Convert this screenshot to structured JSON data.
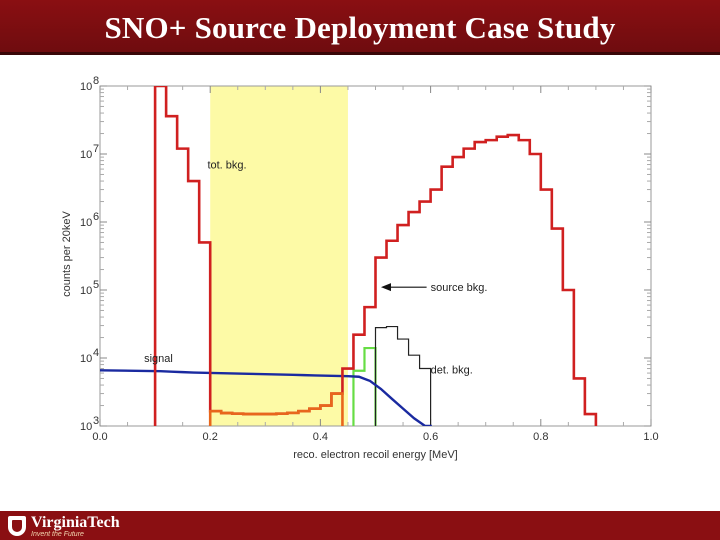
{
  "slide": {
    "title": "SNO+ Source Deployment Case Study",
    "logo": {
      "name": "VirginiaTech",
      "tagline": "Invent the Future"
    }
  },
  "chart_data": {
    "type": "line",
    "xlabel": "reco. electron recoil energy [MeV]",
    "ylabel": "counts per 20keV",
    "xlim": [
      0.0,
      1.0
    ],
    "ylim": [
      1000,
      100000000
    ],
    "yscale": "log",
    "grid": false,
    "xticks": [
      "0.0",
      "0.2",
      "0.4",
      "0.6",
      "0.8",
      "1.0"
    ],
    "ytick_base": "10",
    "ytick_exponents": [
      "3",
      "4",
      "5",
      "6",
      "7",
      "8"
    ],
    "highlight_region": {
      "x": [
        0.2,
        0.45
      ],
      "color": "#fdfaa6"
    },
    "bin_edges": [
      0.1,
      0.12,
      0.14,
      0.16,
      0.18,
      0.2,
      0.22,
      0.24,
      0.26,
      0.28,
      0.3,
      0.32,
      0.34,
      0.36,
      0.38,
      0.4,
      0.42,
      0.44,
      0.46,
      0.48,
      0.5,
      0.52,
      0.54,
      0.56,
      0.58,
      0.6,
      0.62,
      0.64,
      0.66,
      0.68,
      0.7,
      0.72,
      0.74,
      0.76,
      0.78,
      0.8,
      0.82,
      0.84,
      0.86,
      0.88,
      0.9
    ],
    "series": [
      {
        "key": "source",
        "color": "#66dd44",
        "values": [
          0,
          0,
          0,
          0,
          0,
          0,
          0,
          0,
          0,
          0,
          0,
          0,
          0,
          0,
          0,
          0,
          0,
          0,
          6500,
          14000,
          0,
          0,
          0,
          0,
          0,
          0,
          0,
          0,
          0,
          0,
          0,
          0,
          0,
          0,
          0,
          0,
          0,
          0,
          0,
          0
        ],
        "note": "visible only where it departs from total"
      },
      {
        "key": "detector",
        "color": "#222222",
        "values": [
          0,
          0,
          0,
          0,
          0,
          0,
          0,
          0,
          0,
          0,
          0,
          0,
          0,
          0,
          0,
          0,
          0,
          0,
          0,
          0,
          28000,
          29000,
          19000,
          11000,
          7000,
          0,
          0,
          0,
          0,
          0,
          0,
          0,
          0,
          0,
          0,
          0,
          0,
          0,
          0,
          0
        ]
      },
      {
        "key": "signal",
        "color": "#1a2aa0",
        "values": [
          6400,
          6300,
          6200,
          6100,
          6050,
          6000,
          5950,
          5900,
          5850,
          5800,
          5750,
          5700,
          5650,
          5600,
          5550,
          5500,
          5450,
          5400,
          5300,
          4600,
          3500,
          2500,
          1800,
          1300,
          1000,
          0,
          0,
          0,
          0,
          0,
          0,
          0,
          0,
          0,
          0,
          0,
          0,
          0,
          0,
          0
        ]
      },
      {
        "key": "total",
        "color": "#d02020",
        "values": [
          100000000,
          36000000,
          12000000,
          4000000,
          500000,
          1650,
          1550,
          1520,
          1500,
          1500,
          1500,
          1520,
          1560,
          1650,
          1800,
          2000,
          3000,
          7000,
          22000,
          56000,
          300000,
          530000,
          900000,
          1400000,
          2000000,
          3000000,
          6500000,
          9000000,
          12000000,
          15000000,
          16000000,
          18000000,
          19000000,
          16000000,
          10000000,
          3000000,
          800000,
          100000,
          5000,
          1500
        ]
      }
    ],
    "annotations": [
      {
        "text": "tot. bkg.",
        "x": 0.195,
        "y": 7000000
      },
      {
        "text": "source bkg.",
        "x": 0.6,
        "y": 110000,
        "arrow_to": [
          0.51,
          110000
        ]
      },
      {
        "text": "signal",
        "x": 0.08,
        "y": 10000
      },
      {
        "text": "det. bkg.",
        "x": 0.6,
        "y": 6800
      }
    ]
  }
}
